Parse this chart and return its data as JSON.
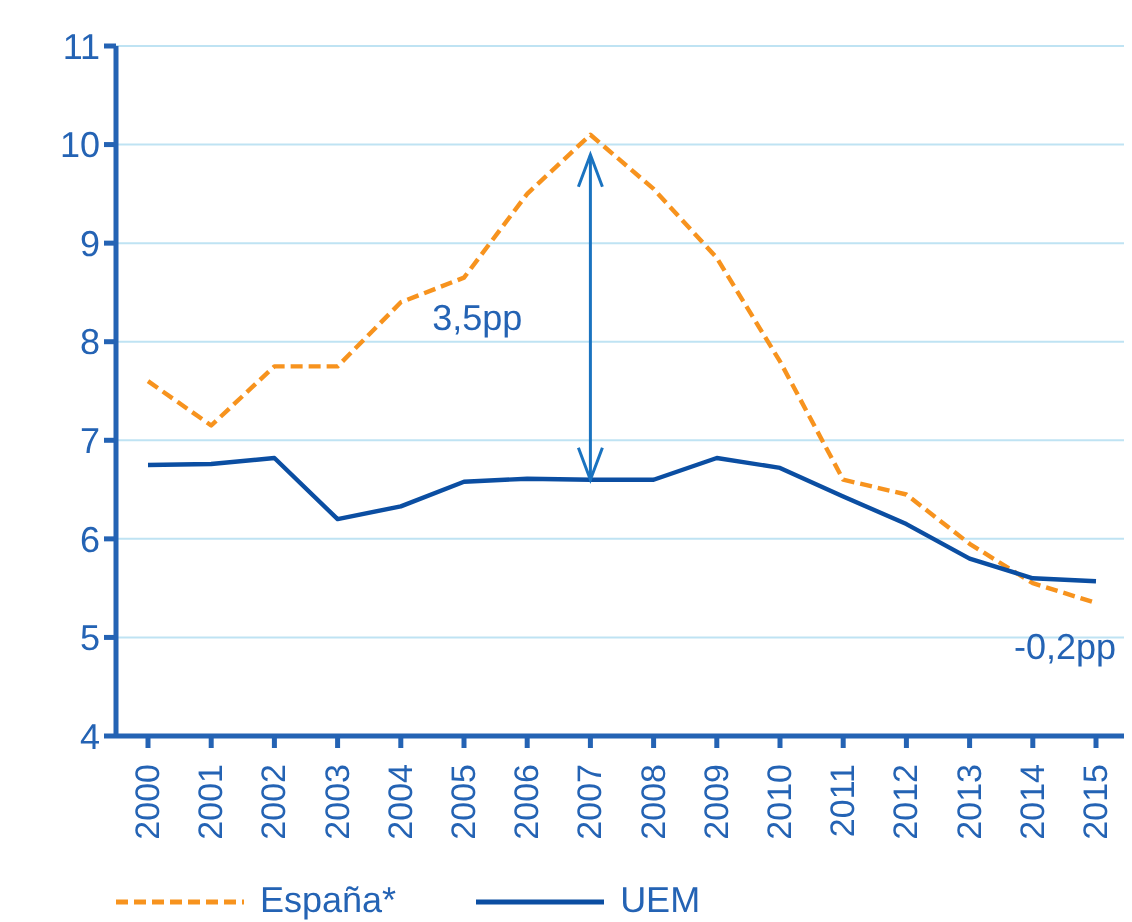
{
  "chart_data": {
    "type": "line",
    "categories": [
      "2000",
      "2001",
      "2002",
      "2003",
      "2004",
      "2005",
      "2006",
      "2007",
      "2008",
      "2009",
      "2010",
      "2011",
      "2012",
      "2013",
      "2014",
      "2015"
    ],
    "series": [
      {
        "name": "España*",
        "color": "#f7931e",
        "line_style": "dashed",
        "values": [
          7.6,
          7.15,
          7.75,
          7.75,
          8.4,
          8.65,
          9.5,
          10.1,
          9.55,
          8.85,
          7.8,
          6.6,
          6.45,
          5.95,
          5.55,
          5.35
        ]
      },
      {
        "name": "UEM",
        "color": "#0b4ea2",
        "line_style": "solid",
        "values": [
          6.75,
          6.76,
          6.82,
          6.2,
          6.33,
          6.58,
          6.61,
          6.6,
          6.6,
          6.82,
          6.72,
          6.43,
          6.15,
          5.8,
          5.6,
          5.57
        ]
      }
    ],
    "ylim": [
      4,
      11
    ],
    "yticks": [
      4,
      5,
      6,
      7,
      8,
      9,
      10,
      11
    ],
    "grid": "y",
    "legend": "bottom",
    "marker": "none",
    "annotations": [
      "3,5pp",
      "-0,2pp"
    ]
  }
}
